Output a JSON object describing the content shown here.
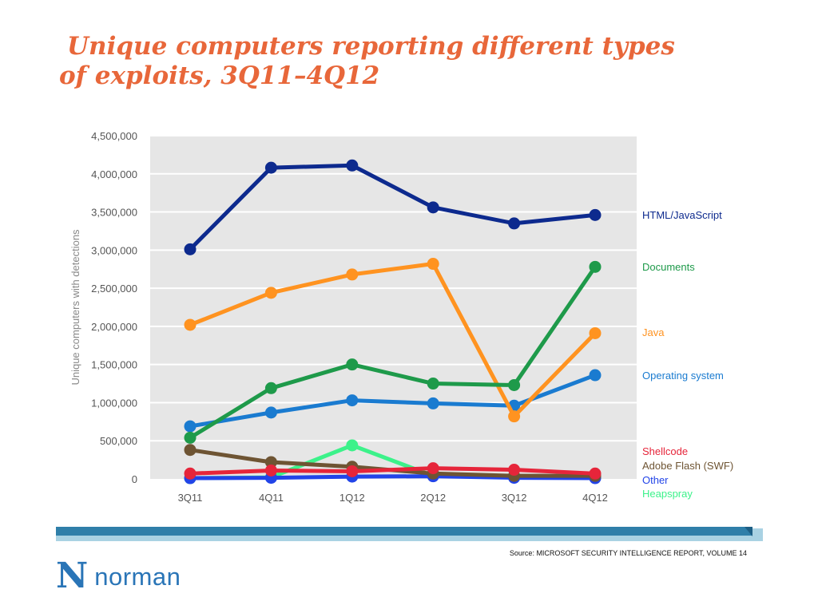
{
  "slide": {
    "title_line1": "Unique computers reporting different types",
    "title_line2": "of exploits, 3Q11–4Q12",
    "title_color": "#e8673a"
  },
  "chart_data": {
    "type": "line",
    "title": "",
    "xlabel": "",
    "ylabel": "Unique computers with detections",
    "categories": [
      "3Q11",
      "4Q11",
      "1Q12",
      "2Q12",
      "3Q12",
      "4Q12"
    ],
    "ylim": [
      0,
      4500000
    ],
    "y_ticks": [
      0,
      500000,
      1000000,
      1500000,
      2000000,
      2500000,
      3000000,
      3500000,
      4000000,
      4500000
    ],
    "y_tick_labels": [
      "0",
      "500,000",
      "1,000,000",
      "1,500,000",
      "2,000,000",
      "2,500,000",
      "3,000,000",
      "3,500,000",
      "4,000,000",
      "4,500,000"
    ],
    "grid": true,
    "plot_background": "#e6e6e6",
    "legend_placement": "right",
    "series": [
      {
        "name": "HTML/JavaScript",
        "color": "#0d2a8e",
        "values": [
          3010000,
          4080000,
          4110000,
          3560000,
          3350000,
          3460000
        ]
      },
      {
        "name": "Documents",
        "color": "#1e9a4a",
        "values": [
          540000,
          1190000,
          1500000,
          1250000,
          1230000,
          2780000
        ]
      },
      {
        "name": "Java",
        "color": "#ff9320",
        "values": [
          2020000,
          2440000,
          2680000,
          2820000,
          820000,
          1910000
        ]
      },
      {
        "name": "Operating system",
        "color": "#1a7bd0",
        "values": [
          690000,
          870000,
          1030000,
          990000,
          960000,
          1360000
        ]
      },
      {
        "name": "Shellcode",
        "color": "#e6253a",
        "values": [
          70000,
          110000,
          100000,
          140000,
          120000,
          70000
        ]
      },
      {
        "name": "Adobe Flash (SWF)",
        "color": "#6e5433",
        "values": [
          380000,
          220000,
          160000,
          70000,
          40000,
          40000
        ]
      },
      {
        "name": "Other",
        "color": "#2244e8",
        "values": [
          10000,
          15000,
          30000,
          35000,
          15000,
          10000
        ]
      },
      {
        "name": "Heapspray",
        "color": "#3cf28a",
        "values": [
          10000,
          20000,
          440000,
          40000,
          20000,
          15000
        ]
      }
    ],
    "draw_order": [
      "Heapspray",
      "Other",
      "Adobe Flash (SWF)",
      "Shellcode",
      "Operating system",
      "Java",
      "Documents",
      "HTML/JavaScript"
    ]
  },
  "footer": {
    "source": "Source: MICROSOFT SECURITY INTELLIGENCE REPORT, VOLUME 14",
    "logo_mark": "N",
    "logo_text": "norman",
    "bar_color_dark": "#2f7fa9",
    "bar_color_light": "#a9d2e3"
  }
}
